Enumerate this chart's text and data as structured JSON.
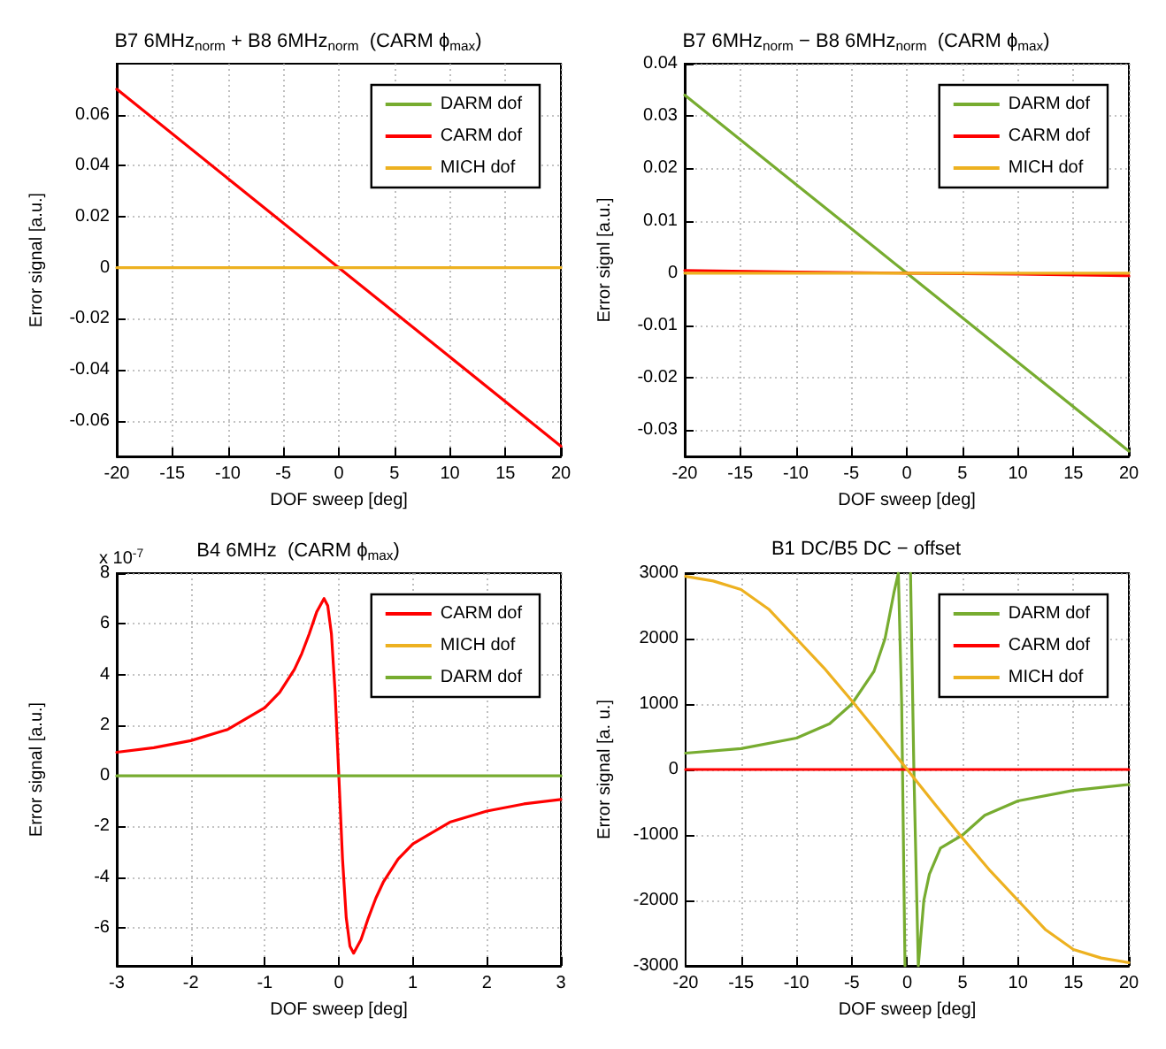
{
  "chart_data": [
    {
      "type": "line",
      "title": "B7 6MHz$_{norm}$ + B8 6MHz$_{norm}$  (CARM ϕ$_{max}$)",
      "xlabel": "DOF sweep [deg]",
      "ylabel": "Error signal [a.u.]",
      "x": [
        -20,
        -10,
        0,
        10,
        20
      ],
      "xlim": [
        -20,
        20
      ],
      "xticks": [
        -20,
        -15,
        -10,
        -5,
        0,
        5,
        10,
        15,
        20
      ],
      "ylim": [
        -0.074,
        0.08
      ],
      "yticks": [
        -0.06,
        -0.04,
        -0.02,
        0,
        0.02,
        0.04,
        0.06
      ],
      "grid": true,
      "legend": "top right",
      "series": [
        {
          "name": "DARM dof",
          "color": "#77ac30",
          "values": [
            null,
            null,
            null,
            null,
            null
          ]
        },
        {
          "name": "CARM dof",
          "color": "#ff0000",
          "values": [
            0.07,
            0.035,
            0,
            -0.035,
            -0.07
          ]
        },
        {
          "name": "MICH dof",
          "color": "#edb120",
          "values": [
            0,
            0,
            0,
            0,
            0
          ]
        }
      ]
    },
    {
      "type": "line",
      "title": "B7 6MHz$_{norm}$ − B8 6MHz$_{norm}$  (CARM ϕ$_{max}$)",
      "xlabel": "DOF sweep [deg]",
      "ylabel": "Error signl [a.u.]",
      "x": [
        -20,
        -10,
        0,
        10,
        20
      ],
      "xlim": [
        -20,
        20
      ],
      "xticks": [
        -20,
        -15,
        -10,
        -5,
        0,
        5,
        10,
        15,
        20
      ],
      "ylim": [
        -0.035,
        0.04
      ],
      "yticks": [
        -0.03,
        -0.02,
        -0.01,
        0,
        0.01,
        0.02,
        0.03,
        0.04
      ],
      "grid": true,
      "legend": "top right",
      "series": [
        {
          "name": "DARM dof",
          "color": "#77ac30",
          "values": [
            0.034,
            0.017,
            0,
            -0.017,
            -0.034
          ]
        },
        {
          "name": "CARM dof",
          "color": "#ff0000",
          "values": [
            0.0005,
            0.0002,
            0,
            -0.0002,
            -0.0005
          ]
        },
        {
          "name": "MICH dof",
          "color": "#edb120",
          "values": [
            0,
            0,
            0,
            0,
            0
          ]
        }
      ]
    },
    {
      "type": "line",
      "title": "B4 6MHz  (CARM ϕ$_{max}$)",
      "xlabel": "DOF sweep [deg]",
      "ylabel": "Error signal [a.u.]",
      "annotations": [
        "x 10$^{-7}$"
      ],
      "x": [
        -3,
        -2.5,
        -2,
        -1.5,
        -1,
        -0.8,
        -0.6,
        -0.5,
        -0.4,
        -0.3,
        -0.2,
        -0.15,
        -0.1,
        -0.05,
        0,
        0.05,
        0.1,
        0.15,
        0.2,
        0.3,
        0.4,
        0.5,
        0.6,
        0.8,
        1,
        1.5,
        2,
        2.5,
        3
      ],
      "xlim": [
        -3,
        3
      ],
      "xticks": [
        -3,
        -2,
        -1,
        0,
        1,
        2,
        3
      ],
      "ylim": [
        -7.5,
        8
      ],
      "yticks": [
        -6,
        -4,
        -2,
        0,
        2,
        4,
        6,
        8
      ],
      "grid": true,
      "legend": "top right",
      "series": [
        {
          "name": "CARM dof",
          "color": "#ff0000",
          "values": [
            0.93,
            1.11,
            1.39,
            1.83,
            2.69,
            3.29,
            4.2,
            4.83,
            5.6,
            6.46,
            7,
            6.72,
            5.6,
            3.29,
            0,
            -3.29,
            -5.6,
            -6.72,
            -7,
            -6.46,
            -5.6,
            -4.83,
            -4.2,
            -3.29,
            -2.69,
            -1.83,
            -1.39,
            -1.11,
            -0.93
          ]
        },
        {
          "name": "MICH dof",
          "color": "#edb120",
          "values": [
            null,
            null,
            null,
            null,
            null,
            null,
            null,
            null,
            null,
            null,
            null,
            null,
            null,
            null,
            null,
            null,
            null,
            null,
            null,
            null,
            null,
            null,
            null,
            null,
            null,
            null,
            null,
            null,
            null
          ]
        },
        {
          "name": "DARM dof",
          "color": "#77ac30",
          "x": [
            -3,
            3
          ],
          "values": [
            0,
            0
          ]
        }
      ]
    },
    {
      "type": "line",
      "title": "B1 DC/B5 DC − offset",
      "xlabel": "DOF sweep [deg]",
      "ylabel": "Error signal [a. u.]",
      "xlim": [
        -20,
        20
      ],
      "xticks": [
        -20,
        -15,
        -10,
        -5,
        0,
        5,
        10,
        15,
        20
      ],
      "ylim": [
        -3000,
        3000
      ],
      "yticks": [
        -3000,
        -2000,
        -1000,
        0,
        1000,
        2000,
        3000
      ],
      "grid": true,
      "legend": "top right",
      "series": [
        {
          "name": "DARM dof",
          "color": "#77ac30",
          "x": [
            -20,
            -15,
            -10,
            -7,
            -5,
            -3,
            -2,
            -1.2,
            -0.8,
            -0.5,
            -0.2,
            0.05,
            0.3,
            0.6,
            1,
            1.5,
            2,
            3,
            5,
            7,
            10,
            15,
            20
          ],
          "values": [
            250,
            320,
            480,
            700,
            1000,
            1500,
            2000,
            2700,
            3000,
            1000,
            -3000,
            null,
            3000,
            0,
            -3000,
            -2000,
            -1600,
            -1200,
            -1000,
            -700,
            -480,
            -320,
            -230
          ]
        },
        {
          "name": "CARM dof",
          "color": "#ff0000",
          "x": [
            -20,
            20
          ],
          "values": [
            0,
            0
          ]
        },
        {
          "name": "MICH dof",
          "color": "#edb120",
          "x": [
            -20,
            -17.5,
            -15,
            -12.5,
            -10,
            -7.5,
            -5,
            -2.5,
            0,
            2.5,
            5,
            7.5,
            10,
            12.5,
            15,
            17.5,
            20
          ],
          "values": [
            2950,
            2880,
            2750,
            2450,
            2000,
            1550,
            1050,
            530,
            0,
            -530,
            -1050,
            -1550,
            -2000,
            -2450,
            -2750,
            -2880,
            -2950
          ]
        }
      ]
    }
  ]
}
